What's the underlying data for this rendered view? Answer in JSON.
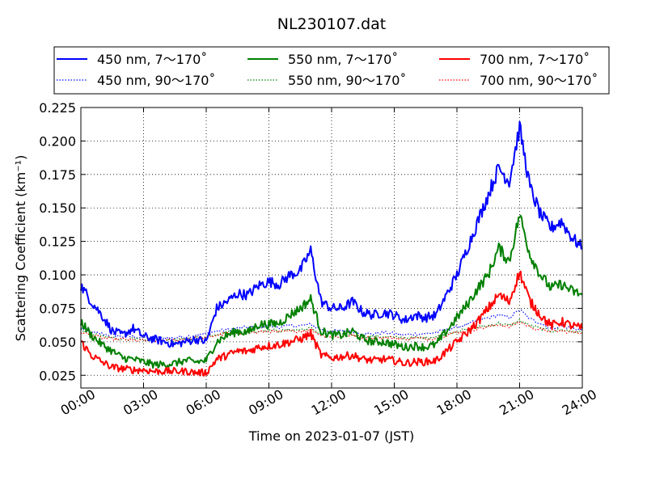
{
  "chart_data": {
    "type": "line",
    "title": "NL230107.dat",
    "xlabel": "Time on 2023-01-07 (JST)",
    "ylabel": "Scattering Coefficient (km⁻¹)",
    "xlim": [
      "00:00",
      "24:00"
    ],
    "ylim": [
      0.0155,
      0.225
    ],
    "x_ticks": [
      "00:00",
      "03:00",
      "06:00",
      "09:00",
      "12:00",
      "15:00",
      "18:00",
      "21:00",
      "24:00"
    ],
    "y_ticks": [
      "0.025",
      "0.050",
      "0.075",
      "0.100",
      "0.125",
      "0.150",
      "0.175",
      "0.200",
      "0.225"
    ],
    "grid": true,
    "legend_position": "top",
    "x": [
      "00:00",
      "00:30",
      "01:00",
      "01:30",
      "02:00",
      "02:30",
      "03:00",
      "03:30",
      "04:00",
      "04:30",
      "05:00",
      "05:30",
      "06:00",
      "06:30",
      "07:00",
      "07:30",
      "08:00",
      "08:30",
      "09:00",
      "09:30",
      "10:00",
      "10:30",
      "11:00",
      "11:30",
      "12:00",
      "12:30",
      "13:00",
      "13:30",
      "14:00",
      "14:30",
      "15:00",
      "15:30",
      "16:00",
      "16:30",
      "17:00",
      "17:30",
      "18:00",
      "18:30",
      "19:00",
      "19:30",
      "20:00",
      "20:30",
      "21:00",
      "21:30",
      "22:00",
      "22:30",
      "23:00",
      "23:30",
      "24:00"
    ],
    "series": [
      {
        "name": "450 nm, 7～170˚",
        "color": "#0000ff",
        "style": "solid",
        "values": [
          0.092,
          0.08,
          0.07,
          0.058,
          0.055,
          0.06,
          0.054,
          0.052,
          0.05,
          0.048,
          0.05,
          0.052,
          0.05,
          0.075,
          0.08,
          0.086,
          0.085,
          0.092,
          0.095,
          0.093,
          0.1,
          0.103,
          0.118,
          0.08,
          0.075,
          0.075,
          0.08,
          0.072,
          0.07,
          0.072,
          0.07,
          0.066,
          0.07,
          0.068,
          0.07,
          0.085,
          0.1,
          0.12,
          0.14,
          0.16,
          0.18,
          0.17,
          0.21,
          0.165,
          0.145,
          0.135,
          0.14,
          0.128,
          0.12
        ]
      },
      {
        "name": "450 nm, 90～170˚",
        "color": "#0000ff",
        "style": "dotted",
        "values": [
          0.06,
          0.057,
          0.056,
          0.055,
          0.054,
          0.054,
          0.053,
          0.053,
          0.053,
          0.053,
          0.054,
          0.055,
          0.056,
          0.058,
          0.059,
          0.06,
          0.061,
          0.061,
          0.062,
          0.061,
          0.062,
          0.062,
          0.063,
          0.059,
          0.058,
          0.058,
          0.058,
          0.056,
          0.056,
          0.057,
          0.056,
          0.055,
          0.056,
          0.056,
          0.057,
          0.059,
          0.061,
          0.063,
          0.066,
          0.068,
          0.07,
          0.068,
          0.074,
          0.067,
          0.064,
          0.06,
          0.062,
          0.06,
          0.059
        ]
      },
      {
        "name": "550 nm, 7～170˚",
        "color": "#008000",
        "style": "solid",
        "values": [
          0.065,
          0.055,
          0.048,
          0.043,
          0.038,
          0.037,
          0.035,
          0.033,
          0.033,
          0.034,
          0.036,
          0.035,
          0.036,
          0.05,
          0.055,
          0.058,
          0.057,
          0.063,
          0.063,
          0.064,
          0.07,
          0.075,
          0.082,
          0.058,
          0.055,
          0.055,
          0.058,
          0.052,
          0.05,
          0.05,
          0.048,
          0.046,
          0.047,
          0.046,
          0.048,
          0.058,
          0.068,
          0.078,
          0.09,
          0.1,
          0.12,
          0.11,
          0.145,
          0.115,
          0.1,
          0.09,
          0.093,
          0.088,
          0.085
        ]
      },
      {
        "name": "550 nm, 90～170˚",
        "color": "#008000",
        "style": "dotted",
        "values": [
          0.059,
          0.056,
          0.054,
          0.053,
          0.052,
          0.052,
          0.051,
          0.051,
          0.051,
          0.051,
          0.052,
          0.053,
          0.054,
          0.056,
          0.057,
          0.057,
          0.058,
          0.058,
          0.059,
          0.058,
          0.059,
          0.059,
          0.06,
          0.056,
          0.055,
          0.055,
          0.055,
          0.054,
          0.054,
          0.054,
          0.053,
          0.053,
          0.053,
          0.053,
          0.054,
          0.056,
          0.058,
          0.059,
          0.061,
          0.062,
          0.064,
          0.062,
          0.066,
          0.062,
          0.06,
          0.058,
          0.059,
          0.058,
          0.057
        ]
      },
      {
        "name": "700 nm, 7～170˚",
        "color": "#ff0000",
        "style": "solid",
        "values": [
          0.05,
          0.04,
          0.035,
          0.031,
          0.03,
          0.029,
          0.029,
          0.028,
          0.028,
          0.028,
          0.028,
          0.027,
          0.027,
          0.037,
          0.04,
          0.043,
          0.043,
          0.046,
          0.047,
          0.048,
          0.05,
          0.052,
          0.056,
          0.04,
          0.038,
          0.039,
          0.04,
          0.037,
          0.036,
          0.037,
          0.036,
          0.034,
          0.035,
          0.035,
          0.036,
          0.043,
          0.05,
          0.057,
          0.065,
          0.075,
          0.085,
          0.08,
          0.102,
          0.08,
          0.07,
          0.062,
          0.065,
          0.062,
          0.06
        ]
      },
      {
        "name": "700 nm, 90～170˚",
        "color": "#ff0000",
        "style": "dotted",
        "values": [
          0.057,
          0.055,
          0.053,
          0.052,
          0.052,
          0.051,
          0.051,
          0.051,
          0.051,
          0.051,
          0.052,
          0.053,
          0.053,
          0.055,
          0.056,
          0.056,
          0.057,
          0.057,
          0.058,
          0.057,
          0.058,
          0.058,
          0.059,
          0.055,
          0.054,
          0.054,
          0.055,
          0.053,
          0.053,
          0.053,
          0.053,
          0.052,
          0.053,
          0.052,
          0.053,
          0.055,
          0.057,
          0.058,
          0.06,
          0.061,
          0.063,
          0.061,
          0.065,
          0.061,
          0.059,
          0.058,
          0.058,
          0.057,
          0.057
        ]
      }
    ]
  }
}
